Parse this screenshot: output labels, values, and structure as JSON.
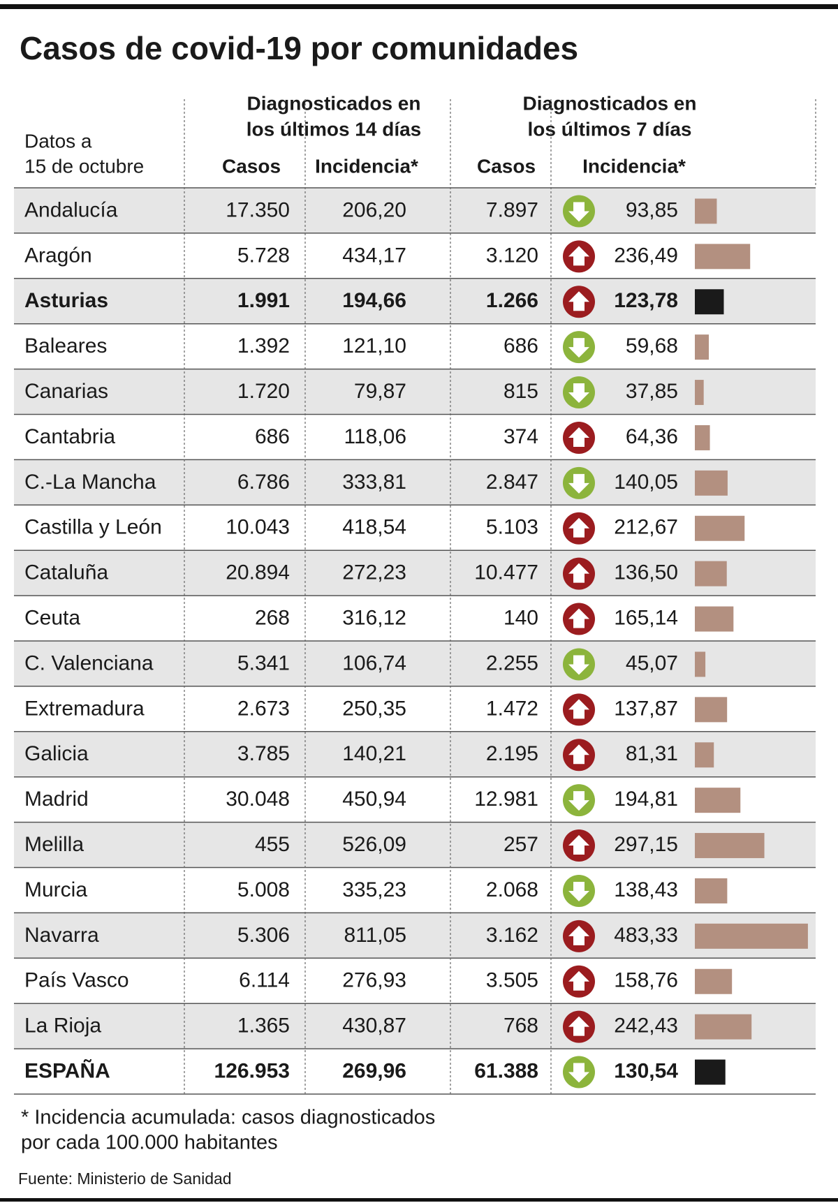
{
  "title": "Casos de covid-19 por comunidades",
  "header": {
    "dates": [
      "Datos a",
      "15 de octubre"
    ],
    "group14": [
      "Diagnosticados en",
      "los últimos 14 días"
    ],
    "group7": [
      "Diagnosticados en",
      "los últimos 7 días"
    ],
    "casos14": "Casos",
    "inc14": "Incidencia*",
    "casos7": "Casos",
    "inc7": "Incidencia*"
  },
  "trend_colors": {
    "up": "#9b1c1f",
    "down": "#8cb43c"
  },
  "bar_color": "#b39080",
  "bold_bar_color": "#1a1a1a",
  "table": {
    "rows": [
      {
        "region": "Andalucía",
        "casos14": "17.350",
        "inc14": "206,20",
        "casos7": "7.897",
        "trend": "down",
        "inc7": {
          "value": 93.85,
          "label": "93,85"
        }
      },
      {
        "region": "Aragón",
        "casos14": "5.728",
        "inc14": "434,17",
        "casos7": "3.120",
        "trend": "up",
        "inc7": {
          "value": 236.49,
          "label": "236,49"
        }
      },
      {
        "region": "Asturias",
        "casos14": "1.991",
        "inc14": "194,66",
        "casos7": "1.266",
        "trend": "up",
        "inc7": {
          "value": 123.78,
          "label": "123,78"
        },
        "bold": true
      },
      {
        "region": "Baleares",
        "casos14": "1.392",
        "inc14": "121,10",
        "casos7": "686",
        "trend": "down",
        "inc7": {
          "value": 59.68,
          "label": "59,68"
        }
      },
      {
        "region": "Canarias",
        "casos14": "1.720",
        "inc14": "79,87",
        "casos7": "815",
        "trend": "down",
        "inc7": {
          "value": 37.85,
          "label": "37,85"
        }
      },
      {
        "region": "Cantabria",
        "casos14": "686",
        "inc14": "118,06",
        "casos7": "374",
        "trend": "up",
        "inc7": {
          "value": 64.36,
          "label": "64,36"
        }
      },
      {
        "region": "C.-La Mancha",
        "casos14": "6.786",
        "inc14": "333,81",
        "casos7": "2.847",
        "trend": "down",
        "inc7": {
          "value": 140.05,
          "label": "140,05"
        }
      },
      {
        "region": "Castilla y León",
        "casos14": "10.043",
        "inc14": "418,54",
        "casos7": "5.103",
        "trend": "up",
        "inc7": {
          "value": 212.67,
          "label": "212,67"
        }
      },
      {
        "region": "Cataluña",
        "casos14": "20.894",
        "inc14": "272,23",
        "casos7": "10.477",
        "trend": "up",
        "inc7": {
          "value": 136.5,
          "label": "136,50"
        }
      },
      {
        "region": "Ceuta",
        "casos14": "268",
        "inc14": "316,12",
        "casos7": "140",
        "trend": "up",
        "inc7": {
          "value": 165.14,
          "label": "165,14"
        }
      },
      {
        "region": "C. Valenciana",
        "casos14": "5.341",
        "inc14": "106,74",
        "casos7": "2.255",
        "trend": "down",
        "inc7": {
          "value": 45.07,
          "label": "45,07"
        }
      },
      {
        "region": "Extremadura",
        "casos14": "2.673",
        "inc14": "250,35",
        "casos7": "1.472",
        "trend": "up",
        "inc7": {
          "value": 137.87,
          "label": "137,87"
        }
      },
      {
        "region": "Galicia",
        "casos14": "3.785",
        "inc14": "140,21",
        "casos7": "2.195",
        "trend": "up",
        "inc7": {
          "value": 81.31,
          "label": "81,31"
        }
      },
      {
        "region": "Madrid",
        "casos14": "30.048",
        "inc14": "450,94",
        "casos7": "12.981",
        "trend": "down",
        "inc7": {
          "value": 194.81,
          "label": "194,81"
        }
      },
      {
        "region": "Melilla",
        "casos14": "455",
        "inc14": "526,09",
        "casos7": "257",
        "trend": "up",
        "inc7": {
          "value": 297.15,
          "label": "297,15"
        }
      },
      {
        "region": "Murcia",
        "casos14": "5.008",
        "inc14": "335,23",
        "casos7": "2.068",
        "trend": "down",
        "inc7": {
          "value": 138.43,
          "label": "138,43"
        }
      },
      {
        "region": "Navarra",
        "casos14": "5.306",
        "inc14": "811,05",
        "casos7": "3.162",
        "trend": "up",
        "inc7": {
          "value": 483.33,
          "label": "483,33"
        }
      },
      {
        "region": "País Vasco",
        "casos14": "6.114",
        "inc14": "276,93",
        "casos7": "3.505",
        "trend": "up",
        "inc7": {
          "value": 158.76,
          "label": "158,76"
        }
      },
      {
        "region": "La Rioja",
        "casos14": "1.365",
        "inc14": "430,87",
        "casos7": "768",
        "trend": "up",
        "inc7": {
          "value": 242.43,
          "label": "242,43"
        }
      },
      {
        "region": "ESPAÑA",
        "casos14": "126.953",
        "inc14": "269,96",
        "casos7": "61.388",
        "trend": "down",
        "inc7": {
          "value": 130.54,
          "label": "130,54"
        },
        "bold": true
      }
    ]
  },
  "footnote": [
    "* Incidencia acumulada: casos diagnosticados",
    "por cada 100.000 habitantes"
  ],
  "source": "Fuente: Ministerio de Sanidad"
}
